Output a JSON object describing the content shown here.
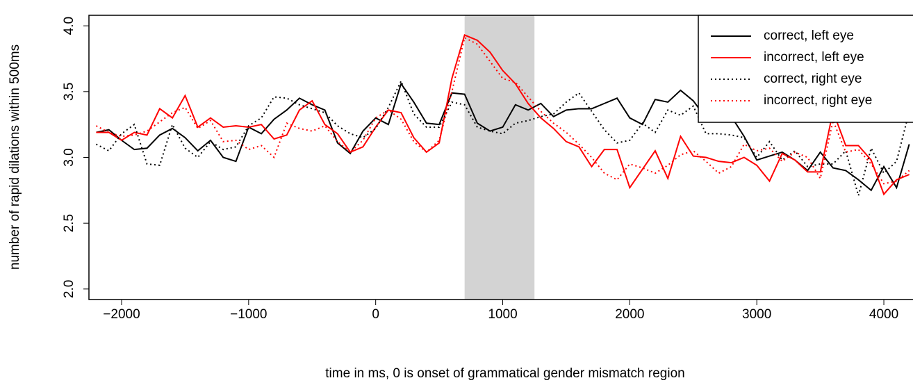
{
  "chart_data": {
    "type": "line",
    "xlabel": "time in ms, 0 is onset of grammatical gender mismatch region",
    "ylabel": "number of rapid dilations within 500ms",
    "x": [
      -2200,
      -2100,
      -2000,
      -1900,
      -1800,
      -1700,
      -1600,
      -1500,
      -1400,
      -1300,
      -1200,
      -1100,
      -1000,
      -900,
      -800,
      -700,
      -600,
      -500,
      -400,
      -300,
      -200,
      -100,
      0,
      100,
      200,
      300,
      400,
      500,
      600,
      700,
      800,
      900,
      1000,
      1100,
      1200,
      1300,
      1400,
      1500,
      1600,
      1700,
      1800,
      1900,
      2000,
      2100,
      2200,
      2300,
      2400,
      2500,
      2600,
      2700,
      2800,
      2900,
      3000,
      3100,
      3200,
      3300,
      3400,
      3500,
      3600,
      3700,
      3800,
      3900,
      4000,
      4100,
      4200
    ],
    "series": [
      {
        "name": "correct, left eye",
        "color": "#000000",
        "dash": "solid",
        "values": [
          3.19,
          3.21,
          3.13,
          3.06,
          3.07,
          3.17,
          3.22,
          3.15,
          3.05,
          3.13,
          3.0,
          2.97,
          3.23,
          3.18,
          3.29,
          3.36,
          3.45,
          3.4,
          3.36,
          3.11,
          3.03,
          3.2,
          3.3,
          3.25,
          3.56,
          3.42,
          3.26,
          3.25,
          3.49,
          3.48,
          3.26,
          3.2,
          3.23,
          3.4,
          3.36,
          3.41,
          3.31,
          3.36,
          3.37,
          3.37,
          3.41,
          3.45,
          3.3,
          3.25,
          3.44,
          3.42,
          3.51,
          3.43,
          3.3,
          3.3,
          3.31,
          3.16,
          2.98,
          3.01,
          3.04,
          2.98,
          2.9,
          3.04,
          2.92,
          2.9,
          2.83,
          2.75,
          2.93,
          2.77,
          3.1
        ]
      },
      {
        "name": "incorrect, left eye",
        "color": "#ff0000",
        "dash": "solid",
        "values": [
          3.19,
          3.19,
          3.13,
          3.19,
          3.17,
          3.37,
          3.3,
          3.47,
          3.23,
          3.3,
          3.23,
          3.24,
          3.23,
          3.25,
          3.14,
          3.17,
          3.36,
          3.43,
          3.25,
          3.18,
          3.04,
          3.08,
          3.23,
          3.36,
          3.34,
          3.15,
          3.04,
          3.11,
          3.6,
          3.93,
          3.89,
          3.8,
          3.66,
          3.56,
          3.41,
          3.3,
          3.22,
          3.12,
          3.08,
          2.93,
          3.06,
          3.06,
          2.77,
          2.91,
          3.05,
          2.84,
          3.16,
          3.01,
          3.0,
          2.97,
          2.96,
          3.0,
          2.94,
          2.82,
          3.03,
          2.98,
          2.89,
          2.89,
          3.35,
          3.09,
          3.09,
          2.98,
          2.72,
          2.83,
          2.87
        ]
      },
      {
        "name": "correct, right eye",
        "color": "#000000",
        "dash": "dotted",
        "values": [
          3.1,
          3.05,
          3.18,
          3.25,
          2.95,
          2.94,
          3.25,
          3.07,
          3.0,
          3.12,
          3.06,
          3.08,
          3.24,
          3.3,
          3.46,
          3.45,
          3.4,
          3.37,
          3.34,
          3.24,
          3.18,
          3.15,
          3.22,
          3.38,
          3.58,
          3.33,
          3.23,
          3.23,
          3.42,
          3.4,
          3.23,
          3.2,
          3.18,
          3.26,
          3.28,
          3.31,
          3.33,
          3.42,
          3.49,
          3.35,
          3.21,
          3.11,
          3.13,
          3.26,
          3.19,
          3.36,
          3.32,
          3.39,
          3.18,
          3.18,
          3.17,
          3.15,
          3.0,
          3.12,
          2.98,
          3.05,
          2.93,
          2.95,
          2.95,
          3.05,
          2.71,
          3.07,
          2.88,
          2.97,
          3.35
        ]
      },
      {
        "name": "incorrect, right eye",
        "color": "#ff0000",
        "dash": "dotted",
        "values": [
          3.24,
          3.19,
          3.16,
          3.17,
          3.2,
          3.27,
          3.34,
          3.38,
          3.22,
          3.28,
          3.12,
          3.13,
          3.06,
          3.09,
          3.0,
          3.26,
          3.22,
          3.2,
          3.24,
          3.12,
          3.04,
          3.13,
          3.3,
          3.36,
          3.29,
          3.12,
          3.04,
          3.13,
          3.5,
          3.91,
          3.86,
          3.73,
          3.6,
          3.57,
          3.46,
          3.35,
          3.26,
          3.19,
          3.1,
          3.0,
          2.88,
          2.83,
          2.95,
          2.92,
          2.88,
          2.94,
          3.02,
          3.05,
          2.97,
          2.88,
          2.93,
          3.1,
          3.05,
          3.07,
          2.97,
          3.04,
          3.0,
          2.84,
          3.28,
          3.04,
          3.06,
          2.95,
          2.8,
          2.82,
          2.9
        ]
      }
    ],
    "shaded_region": [
      700,
      1250
    ],
    "shade_color": "#d3d3d3",
    "xlim": [
      -2257,
      4224
    ],
    "ylim": [
      1.92,
      4.08
    ],
    "xticks": [
      {
        "value": -2000,
        "label": "−2000"
      },
      {
        "value": -1000,
        "label": "−1000"
      },
      0,
      1000,
      2000,
      3000,
      4000
    ],
    "yticks": [
      {
        "value": 2,
        "label": "2.0"
      },
      2.5,
      {
        "value": 3,
        "label": "3.0"
      },
      3.5,
      {
        "value": 4,
        "label": "4.0"
      }
    ],
    "legend": "top-right",
    "grid": false
  }
}
